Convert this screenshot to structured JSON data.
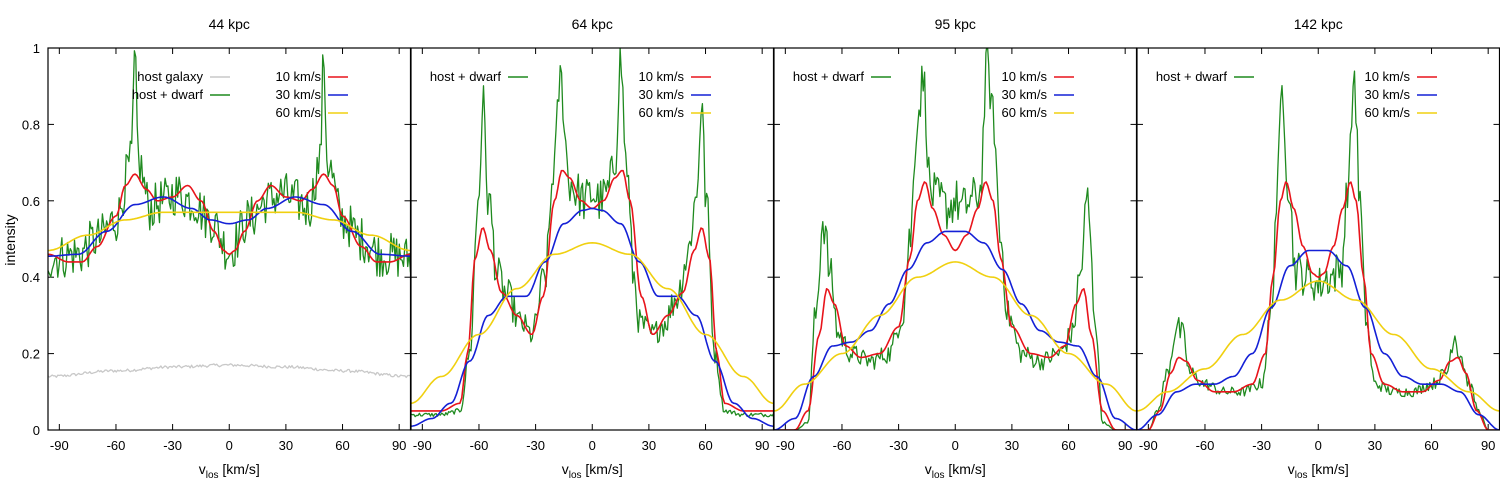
{
  "figure": {
    "ylabel": "intensity",
    "xlabel_main": "v",
    "xlabel_sub": "los",
    "xlabel_unit": " [km/s]"
  },
  "colors": {
    "host_galaxy": "#c8c8c8",
    "host_dwarf": "#1f8a1f",
    "v10": "#e8141b",
    "v30": "#1420d6",
    "v60": "#f0d010"
  },
  "chart_data": [
    {
      "type": "line",
      "title": "44 kpc",
      "xlim": [
        -96,
        96
      ],
      "ylim": [
        0,
        1.0
      ],
      "xticks": [
        -90,
        -60,
        -30,
        0,
        30,
        60,
        90
      ],
      "yticks": [
        0,
        0.2,
        0.4,
        0.6,
        0.8,
        1
      ],
      "ytick_labels": [
        "0",
        "0.2",
        "0.4",
        "0.6",
        "0.8",
        "1"
      ],
      "legend": {
        "left": [
          "host galaxy",
          "host + dwarf"
        ],
        "right": [
          "10 km/s",
          "30 km/s",
          "60 km/s"
        ]
      },
      "series": [
        {
          "name": "host galaxy",
          "color_key": "host_galaxy",
          "noisy": true,
          "x": [
            -96,
            -60,
            -30,
            0,
            30,
            60,
            96
          ],
          "y": [
            0.14,
            0.155,
            0.165,
            0.17,
            0.165,
            0.155,
            0.14
          ]
        },
        {
          "name": "host + dwarf",
          "color_key": "host_dwarf",
          "noisy": true,
          "x": [
            -96,
            -80,
            -70,
            -60,
            -52,
            -50,
            -48,
            -42,
            -35,
            -28,
            -20,
            -10,
            0,
            10,
            20,
            28,
            35,
            42,
            48,
            50,
            52,
            60,
            70,
            80,
            96
          ],
          "y": [
            0.45,
            0.46,
            0.5,
            0.55,
            0.7,
            0.96,
            0.7,
            0.58,
            0.6,
            0.62,
            0.6,
            0.55,
            0.47,
            0.55,
            0.6,
            0.62,
            0.6,
            0.58,
            0.7,
            0.97,
            0.7,
            0.55,
            0.5,
            0.46,
            0.45
          ]
        },
        {
          "name": "10 km/s",
          "color_key": "v10",
          "x": [
            -96,
            -85,
            -78,
            -70,
            -60,
            -55,
            -50,
            -44,
            -38,
            -30,
            -22,
            -15,
            -8,
            -3,
            0,
            3,
            8,
            15,
            22,
            30,
            38,
            44,
            50,
            55,
            60,
            70,
            78,
            85,
            96
          ],
          "y": [
            0.46,
            0.44,
            0.44,
            0.48,
            0.56,
            0.64,
            0.67,
            0.63,
            0.6,
            0.61,
            0.64,
            0.6,
            0.52,
            0.47,
            0.46,
            0.47,
            0.52,
            0.6,
            0.64,
            0.61,
            0.6,
            0.63,
            0.67,
            0.64,
            0.56,
            0.48,
            0.44,
            0.44,
            0.46
          ]
        },
        {
          "name": "30 km/s",
          "color_key": "v30",
          "x": [
            -96,
            -80,
            -65,
            -50,
            -35,
            -20,
            -10,
            0,
            10,
            20,
            35,
            50,
            65,
            80,
            96
          ],
          "y": [
            0.455,
            0.46,
            0.52,
            0.59,
            0.61,
            0.58,
            0.55,
            0.54,
            0.55,
            0.58,
            0.61,
            0.59,
            0.52,
            0.46,
            0.455
          ]
        },
        {
          "name": "60 km/s",
          "color_key": "v60",
          "x": [
            -96,
            -75,
            -55,
            -35,
            -15,
            0,
            15,
            35,
            55,
            75,
            96
          ],
          "y": [
            0.47,
            0.51,
            0.55,
            0.57,
            0.57,
            0.57,
            0.57,
            0.57,
            0.55,
            0.51,
            0.47
          ]
        }
      ]
    },
    {
      "type": "line",
      "title": "64 kpc",
      "xlim": [
        -96,
        96
      ],
      "ylim": [
        0,
        1.0
      ],
      "xticks": [
        -90,
        -60,
        -30,
        0,
        30,
        60,
        90
      ],
      "legend": {
        "left": [
          "host + dwarf"
        ],
        "right": [
          "10 km/s",
          "30 km/s",
          "60 km/s"
        ]
      },
      "series": [
        {
          "name": "host + dwarf",
          "color_key": "host_dwarf",
          "noisy": true,
          "x": [
            -96,
            -80,
            -70,
            -65,
            -60,
            -58,
            -55,
            -50,
            -45,
            -38,
            -32,
            -25,
            -20,
            -17,
            -12,
            -8,
            -4,
            0,
            4,
            8,
            12,
            15,
            18,
            22,
            25,
            32,
            38,
            45,
            50,
            55,
            58,
            60,
            65,
            70,
            80,
            96
          ],
          "y": [
            0.04,
            0.04,
            0.05,
            0.2,
            0.62,
            0.86,
            0.6,
            0.4,
            0.35,
            0.28,
            0.25,
            0.4,
            0.7,
            0.92,
            0.65,
            0.62,
            0.6,
            0.62,
            0.6,
            0.62,
            0.7,
            0.97,
            0.7,
            0.4,
            0.28,
            0.25,
            0.28,
            0.35,
            0.45,
            0.6,
            0.86,
            0.62,
            0.2,
            0.05,
            0.04,
            0.04
          ]
        },
        {
          "name": "10 km/s",
          "color_key": "v10",
          "x": [
            -96,
            -80,
            -70,
            -66,
            -62,
            -58,
            -54,
            -48,
            -40,
            -32,
            -26,
            -20,
            -16,
            -12,
            -6,
            0,
            6,
            12,
            16,
            20,
            26,
            32,
            40,
            48,
            54,
            58,
            62,
            66,
            70,
            80,
            96
          ],
          "y": [
            0.05,
            0.05,
            0.07,
            0.2,
            0.45,
            0.53,
            0.47,
            0.36,
            0.3,
            0.25,
            0.35,
            0.6,
            0.68,
            0.66,
            0.6,
            0.58,
            0.6,
            0.66,
            0.68,
            0.6,
            0.35,
            0.25,
            0.3,
            0.36,
            0.47,
            0.53,
            0.45,
            0.2,
            0.07,
            0.05,
            0.05
          ]
        },
        {
          "name": "30 km/s",
          "color_key": "v30",
          "x": [
            -96,
            -85,
            -75,
            -65,
            -55,
            -45,
            -35,
            -25,
            -15,
            -5,
            0,
            5,
            15,
            25,
            35,
            45,
            55,
            65,
            75,
            85,
            96
          ],
          "y": [
            0.01,
            0.03,
            0.07,
            0.18,
            0.3,
            0.35,
            0.35,
            0.44,
            0.54,
            0.575,
            0.58,
            0.575,
            0.54,
            0.44,
            0.35,
            0.35,
            0.3,
            0.18,
            0.07,
            0.03,
            0.01
          ]
        },
        {
          "name": "60 km/s",
          "color_key": "v60",
          "x": [
            -96,
            -80,
            -60,
            -40,
            -20,
            0,
            20,
            40,
            60,
            80,
            96
          ],
          "y": [
            0.07,
            0.14,
            0.25,
            0.37,
            0.46,
            0.49,
            0.46,
            0.37,
            0.25,
            0.14,
            0.07
          ]
        }
      ]
    },
    {
      "type": "line",
      "title": "95 kpc",
      "xlim": [
        -96,
        96
      ],
      "ylim": [
        0,
        1.0
      ],
      "xticks": [
        -90,
        -60,
        -30,
        0,
        30,
        60,
        90
      ],
      "legend": {
        "left": [
          "host + dwarf"
        ],
        "right": [
          "10 km/s",
          "30 km/s",
          "60 km/s"
        ]
      },
      "series": [
        {
          "name": "host + dwarf",
          "color_key": "host_dwarf",
          "noisy": true,
          "x": [
            -96,
            -85,
            -78,
            -74,
            -70,
            -66,
            -62,
            -55,
            -45,
            -35,
            -28,
            -24,
            -20,
            -17,
            -13,
            -8,
            -4,
            0,
            4,
            8,
            13,
            17,
            20,
            24,
            28,
            35,
            45,
            55,
            62,
            66,
            70,
            74,
            78,
            85,
            96
          ],
          "y": [
            0.0,
            0.0,
            0.02,
            0.3,
            0.55,
            0.4,
            0.25,
            0.2,
            0.18,
            0.2,
            0.3,
            0.5,
            0.82,
            0.92,
            0.62,
            0.6,
            0.58,
            0.6,
            0.58,
            0.6,
            0.62,
            0.96,
            0.82,
            0.5,
            0.3,
            0.2,
            0.18,
            0.2,
            0.25,
            0.4,
            0.6,
            0.3,
            0.02,
            0.0,
            0.0
          ]
        },
        {
          "name": "10 km/s",
          "color_key": "v10",
          "x": [
            -96,
            -85,
            -78,
            -72,
            -68,
            -64,
            -58,
            -50,
            -40,
            -30,
            -24,
            -20,
            -16,
            -12,
            -6,
            0,
            6,
            12,
            16,
            20,
            24,
            30,
            40,
            50,
            58,
            64,
            68,
            72,
            78,
            85,
            96
          ],
          "y": [
            0.0,
            0.0,
            0.05,
            0.25,
            0.37,
            0.33,
            0.22,
            0.19,
            0.2,
            0.27,
            0.45,
            0.6,
            0.65,
            0.58,
            0.51,
            0.47,
            0.51,
            0.58,
            0.65,
            0.6,
            0.45,
            0.27,
            0.2,
            0.19,
            0.22,
            0.33,
            0.37,
            0.25,
            0.05,
            0.0,
            0.0
          ]
        },
        {
          "name": "30 km/s",
          "color_key": "v30",
          "x": [
            -96,
            -85,
            -75,
            -65,
            -55,
            -45,
            -35,
            -25,
            -15,
            -5,
            0,
            5,
            15,
            25,
            35,
            45,
            55,
            65,
            75,
            85,
            96
          ],
          "y": [
            0.0,
            0.03,
            0.14,
            0.22,
            0.23,
            0.26,
            0.33,
            0.42,
            0.49,
            0.52,
            0.52,
            0.52,
            0.49,
            0.42,
            0.33,
            0.26,
            0.23,
            0.22,
            0.14,
            0.03,
            0.0
          ]
        },
        {
          "name": "60 km/s",
          "color_key": "v60",
          "x": [
            -96,
            -80,
            -60,
            -40,
            -20,
            0,
            20,
            40,
            60,
            80,
            96
          ],
          "y": [
            0.05,
            0.12,
            0.2,
            0.3,
            0.4,
            0.44,
            0.4,
            0.3,
            0.2,
            0.12,
            0.05
          ]
        }
      ]
    },
    {
      "type": "line",
      "title": "142 kpc",
      "xlim": [
        -96,
        96
      ],
      "ylim": [
        0,
        1.0
      ],
      "xticks": [
        -90,
        -60,
        -30,
        0,
        30,
        60,
        90
      ],
      "legend": {
        "left": [
          "host + dwarf"
        ],
        "right": [
          "10 km/s",
          "30 km/s",
          "60 km/s"
        ]
      },
      "series": [
        {
          "name": "host + dwarf",
          "color_key": "host_dwarf",
          "noisy": true,
          "x": [
            -96,
            -90,
            -85,
            -80,
            -75,
            -72,
            -68,
            -60,
            -50,
            -40,
            -30,
            -25,
            -22,
            -19,
            -16,
            -12,
            -6,
            0,
            6,
            12,
            16,
            19,
            22,
            25,
            30,
            40,
            50,
            60,
            68,
            72,
            75,
            80,
            85,
            90,
            96
          ],
          "y": [
            0.0,
            0.0,
            0.05,
            0.15,
            0.27,
            0.25,
            0.15,
            0.12,
            0.1,
            0.1,
            0.12,
            0.3,
            0.6,
            0.9,
            0.65,
            0.42,
            0.4,
            0.38,
            0.4,
            0.42,
            0.65,
            0.93,
            0.6,
            0.3,
            0.12,
            0.1,
            0.1,
            0.12,
            0.15,
            0.25,
            0.2,
            0.12,
            0.05,
            0.0,
            0.0
          ]
        },
        {
          "name": "10 km/s",
          "color_key": "v10",
          "x": [
            -96,
            -90,
            -84,
            -78,
            -74,
            -70,
            -64,
            -55,
            -45,
            -35,
            -28,
            -24,
            -20,
            -17,
            -13,
            -8,
            -3,
            0,
            3,
            8,
            13,
            17,
            20,
            24,
            28,
            35,
            45,
            55,
            64,
            70,
            74,
            78,
            84,
            90,
            96
          ],
          "y": [
            0.0,
            0.0,
            0.05,
            0.15,
            0.19,
            0.18,
            0.13,
            0.1,
            0.1,
            0.12,
            0.2,
            0.4,
            0.6,
            0.65,
            0.58,
            0.48,
            0.41,
            0.4,
            0.41,
            0.48,
            0.58,
            0.65,
            0.6,
            0.4,
            0.2,
            0.12,
            0.1,
            0.1,
            0.13,
            0.18,
            0.19,
            0.15,
            0.05,
            0.0,
            0.0
          ]
        },
        {
          "name": "30 km/s",
          "color_key": "v30",
          "x": [
            -96,
            -85,
            -75,
            -65,
            -55,
            -45,
            -35,
            -25,
            -15,
            -5,
            0,
            5,
            15,
            25,
            35,
            45,
            55,
            65,
            75,
            85,
            96
          ],
          "y": [
            0.0,
            0.04,
            0.1,
            0.12,
            0.12,
            0.14,
            0.2,
            0.32,
            0.43,
            0.47,
            0.47,
            0.47,
            0.43,
            0.32,
            0.2,
            0.14,
            0.12,
            0.12,
            0.1,
            0.04,
            0.0
          ]
        },
        {
          "name": "60 km/s",
          "color_key": "v60",
          "x": [
            -96,
            -80,
            -60,
            -40,
            -20,
            0,
            20,
            40,
            60,
            80,
            96
          ],
          "y": [
            0.05,
            0.1,
            0.16,
            0.25,
            0.34,
            0.39,
            0.34,
            0.25,
            0.16,
            0.1,
            0.05
          ]
        }
      ]
    }
  ]
}
